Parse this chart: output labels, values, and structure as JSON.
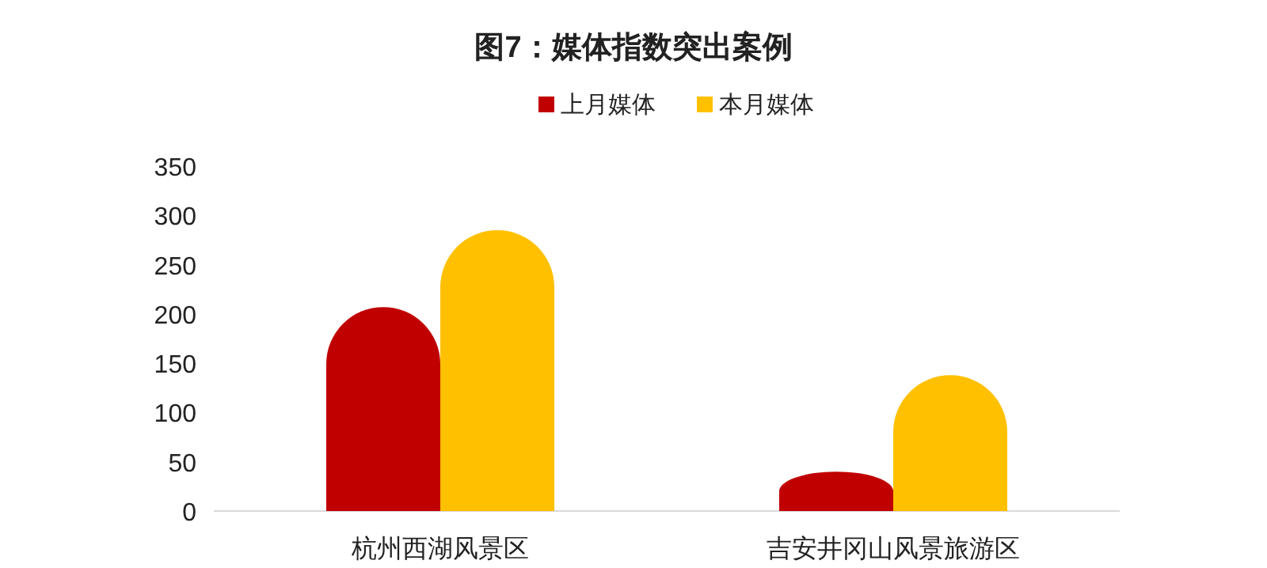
{
  "chart_data": {
    "type": "bar",
    "title": "图7：媒体指数突出案例",
    "categories": [
      "杭州西湖风景区",
      "吉安井冈山风景旅游区"
    ],
    "series": [
      {
        "name": "上月媒体",
        "color": "#c00000",
        "values": [
          207,
          40
        ]
      },
      {
        "name": "本月媒体",
        "color": "#ffc000",
        "values": [
          285,
          138
        ]
      }
    ],
    "ylim": [
      0,
      350
    ],
    "yticks": [
      0,
      50,
      100,
      150,
      200,
      250,
      300,
      350
    ],
    "grid": false,
    "legend": "top"
  }
}
